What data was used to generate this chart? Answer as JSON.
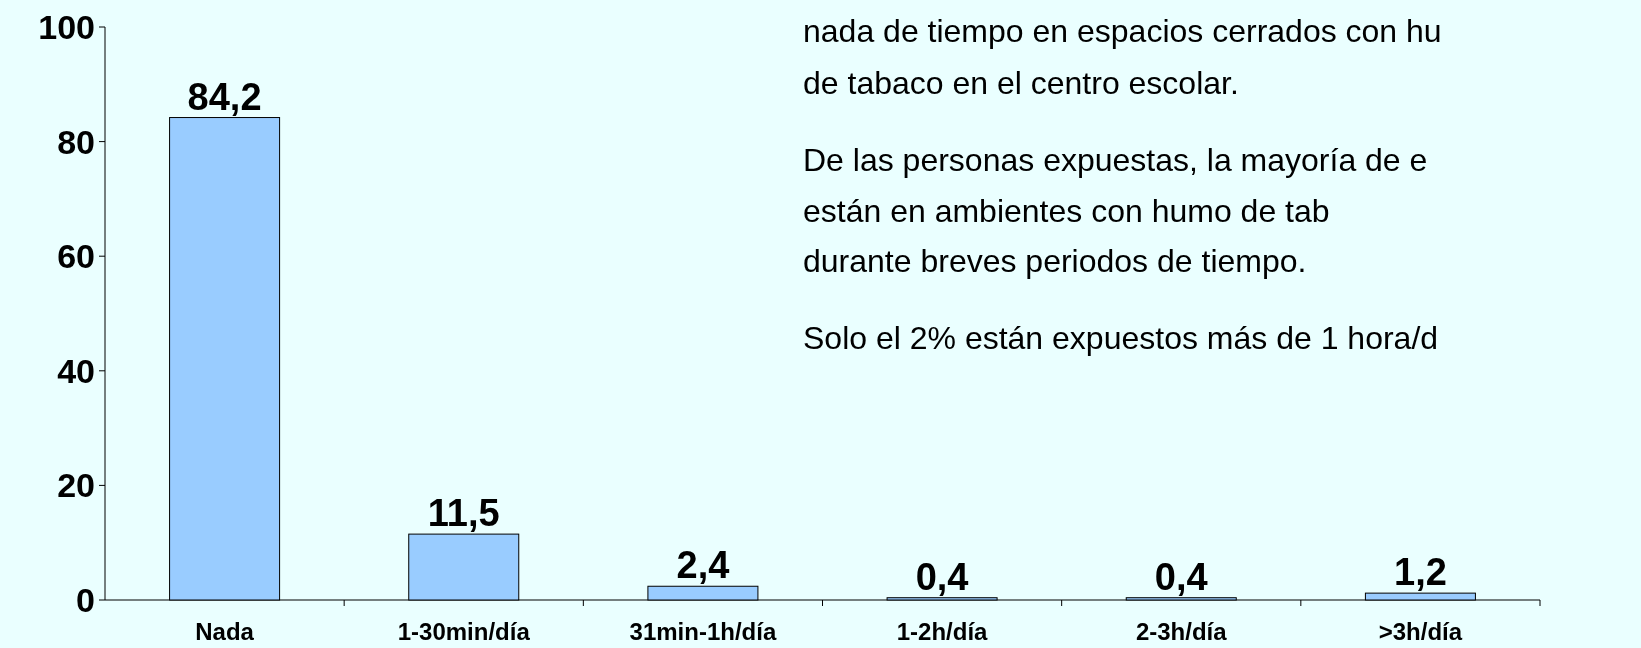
{
  "chart_data": {
    "type": "bar",
    "categories": [
      "Nada",
      "1-30min/día",
      "31min-1h/día",
      "1-2h/día",
      "2-3h/día",
      ">3h/día"
    ],
    "values": [
      84.2,
      11.5,
      2.4,
      0.4,
      0.4,
      1.2
    ],
    "color": "#99ccff",
    "value_labels": [
      "84,2",
      "11,5",
      "2,4",
      "0,4",
      "0,4",
      "1,2"
    ],
    "ylim": [
      0,
      100
    ],
    "yticks": [
      0,
      20,
      40,
      60,
      80,
      100
    ],
    "grid": false,
    "annotations": [
      "nada de tiempo en espacios cerrados con hu",
      "de tabaco en el centro escolar.",
      "De las personas expuestas, la mayoría de e",
      "están en ambientes con humo de tab",
      "durante breves periodos de tiempo.",
      "Solo el 2% están expuestos más de 1 hora/d"
    ]
  }
}
